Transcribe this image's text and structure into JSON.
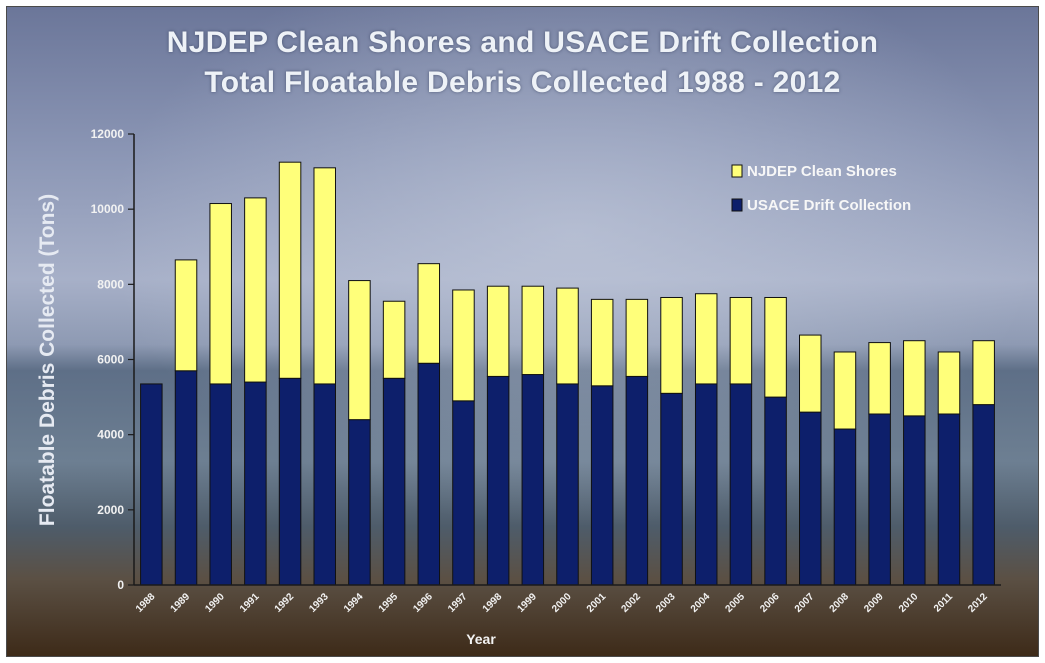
{
  "chart_data": {
    "type": "bar",
    "stacked": true,
    "title": "NJDEP Clean Shores and USACE Drift Collection",
    "subtitle": "Total Floatable Debris Collected 1988 - 2012",
    "xlabel": "Year",
    "ylabel": "Floatable Debris Collected (Tons)",
    "ylim": [
      0,
      12000
    ],
    "yticks": [
      0,
      2000,
      4000,
      6000,
      8000,
      10000,
      12000
    ],
    "grid": false,
    "legend_position": "top-right",
    "categories": [
      "1988",
      "1989",
      "1990",
      "1991",
      "1992",
      "1993",
      "1994",
      "1995",
      "1996",
      "1997",
      "1998",
      "1999",
      "2000",
      "2001",
      "2002",
      "2003",
      "2004",
      "2005",
      "2006",
      "2007",
      "2008",
      "2009",
      "2010",
      "2011",
      "2012"
    ],
    "series": [
      {
        "name": "USACE Drift Collection",
        "color": "#0d1f6b",
        "values": [
          5350,
          5700,
          5350,
          5400,
          5500,
          5350,
          4400,
          5500,
          5900,
          4900,
          5550,
          5600,
          5350,
          5300,
          5550,
          5100,
          5350,
          5350,
          5000,
          4600,
          4150,
          4550,
          4500,
          4550,
          4800
        ]
      },
      {
        "name": "NJDEP Clean Shores",
        "color": "#ffff7a",
        "values": [
          0,
          2950,
          4800,
          4900,
          5750,
          5750,
          3700,
          2050,
          2650,
          2950,
          2400,
          2350,
          2550,
          2300,
          2050,
          2550,
          2400,
          2300,
          2650,
          2050,
          2050,
          1900,
          2000,
          1650,
          1700
        ]
      }
    ]
  }
}
